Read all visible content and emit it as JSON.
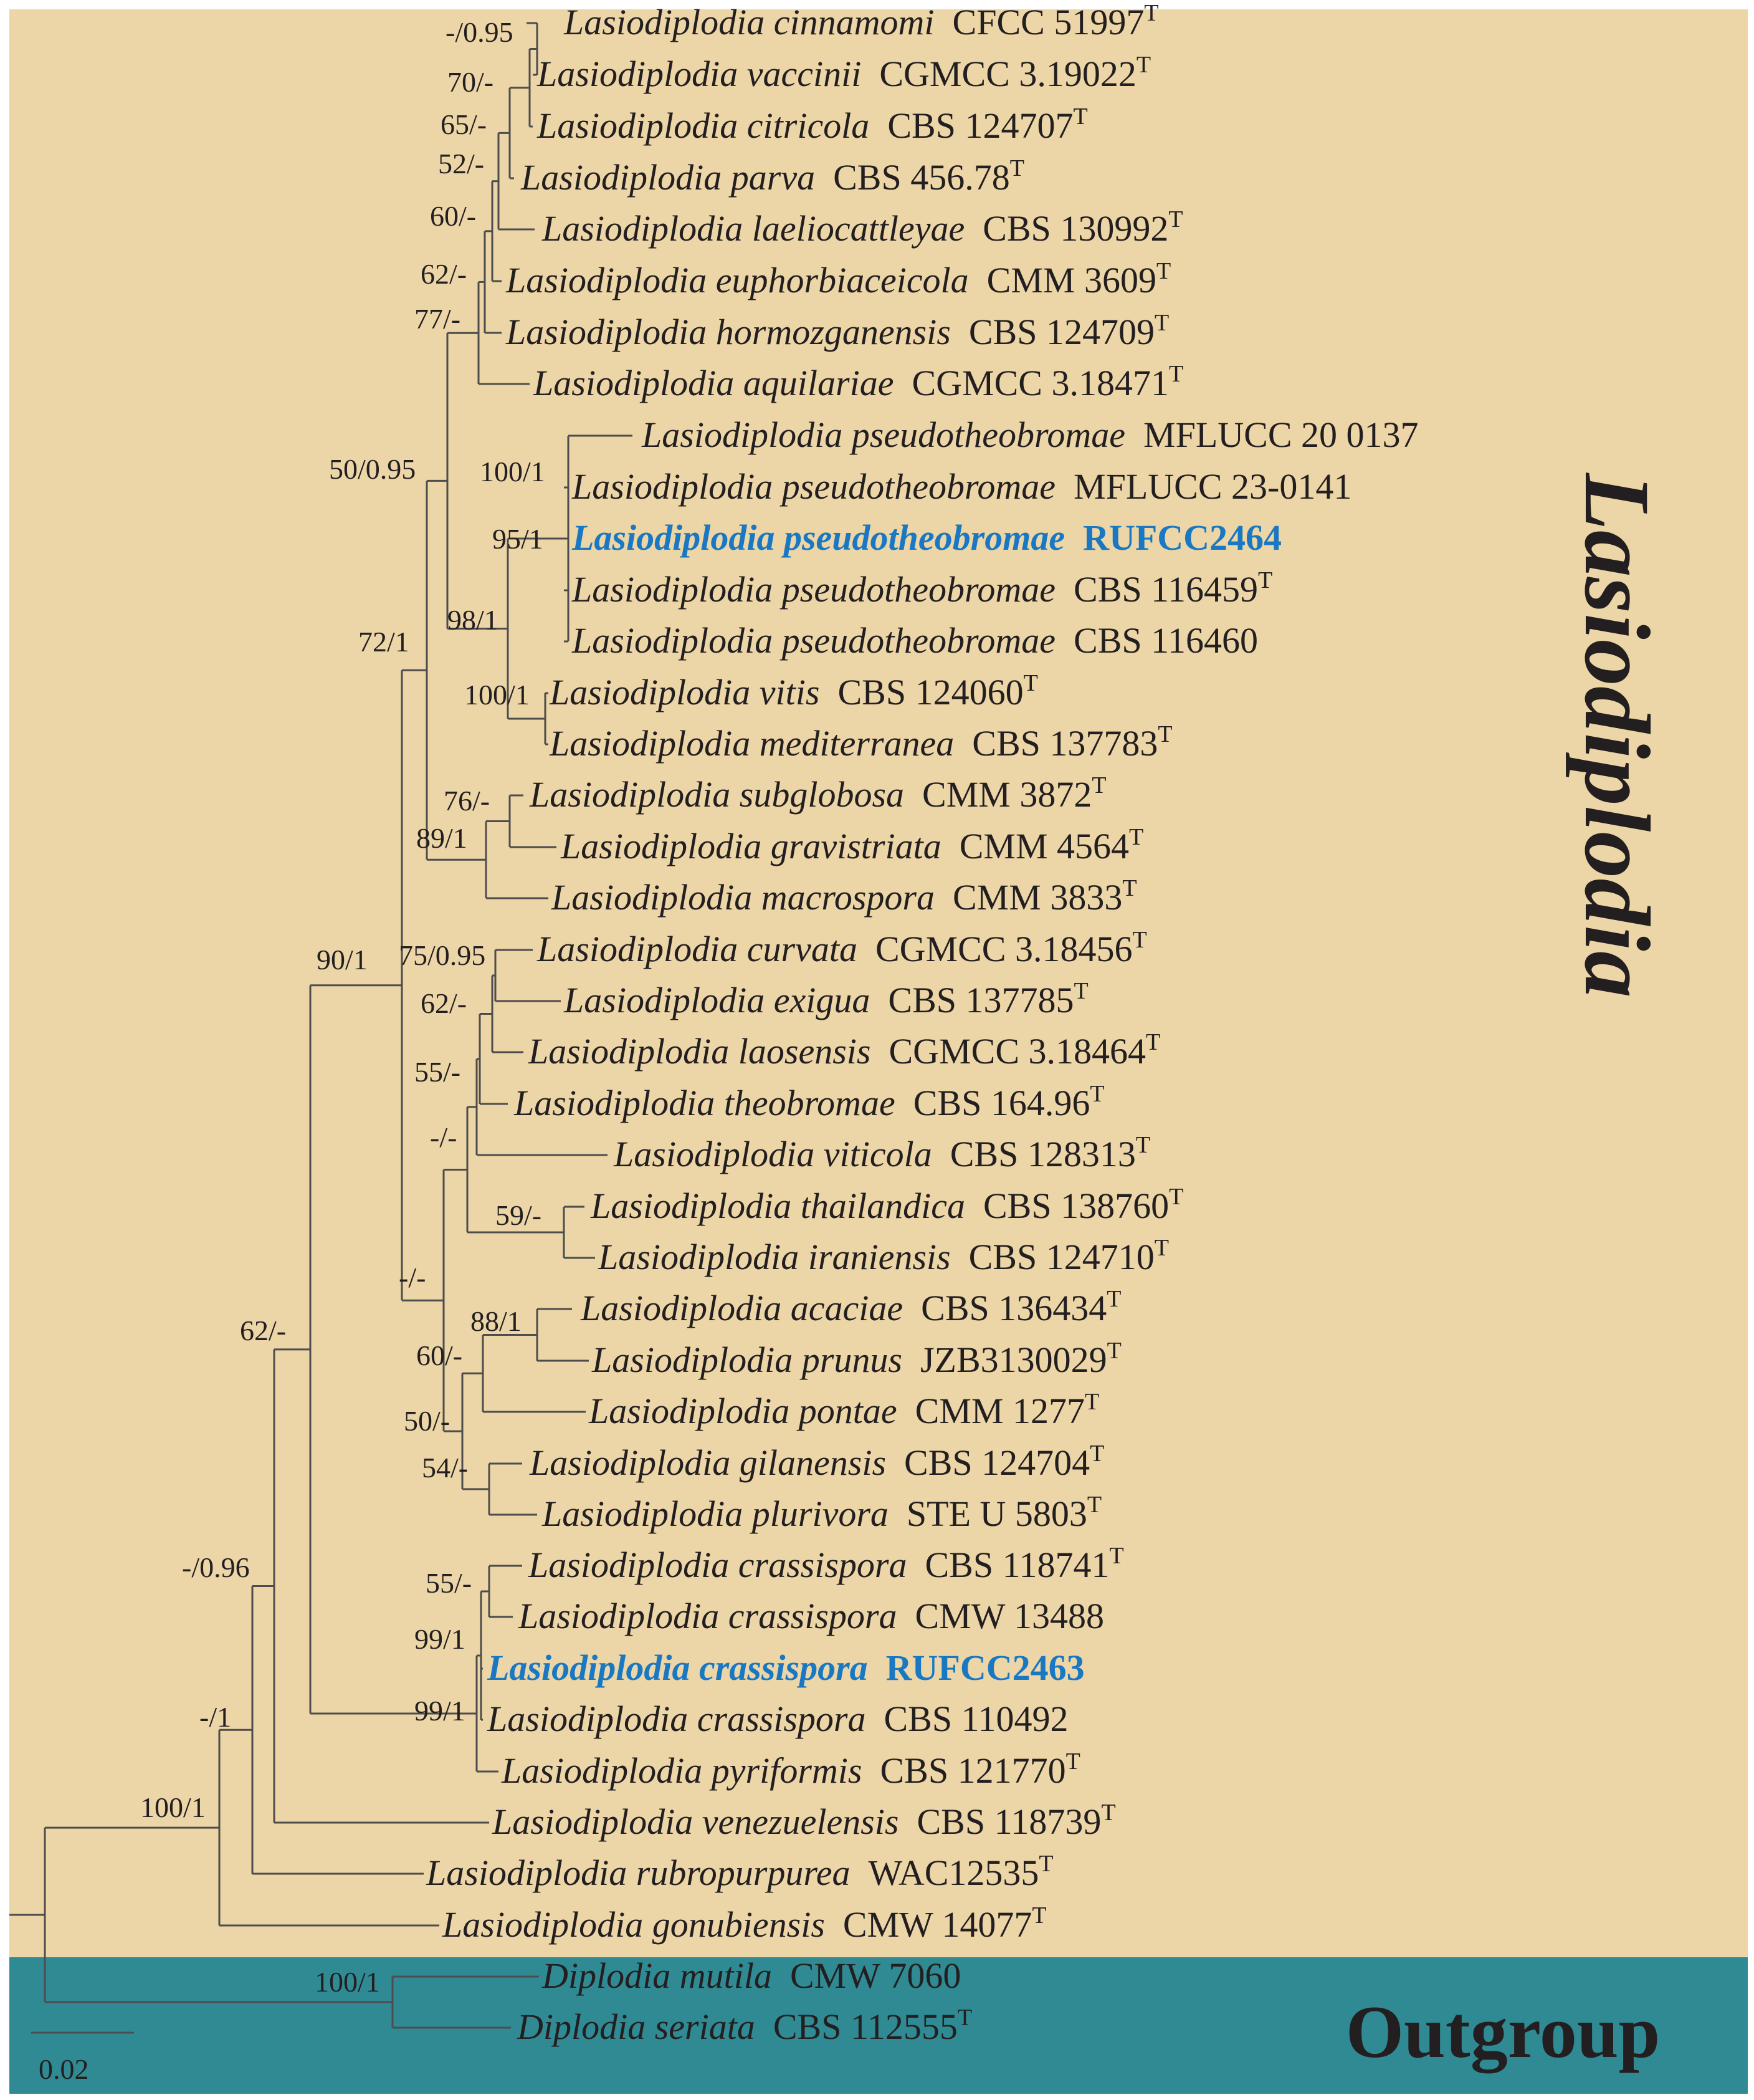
{
  "colors": {
    "ingroup_bg": "#ecd5a6",
    "outgroup_bg": "#2f8a93",
    "branch": "#4d4d4d",
    "text": "#231f20",
    "new_isolate": "#1a78c2"
  },
  "clades": {
    "ingroup": "Lasiodiplodia",
    "outgroup": "Outgroup"
  },
  "scale_bar": {
    "label": "0.02"
  },
  "taxa": [
    {
      "species": "Lasiodiplodia cinnamomi",
      "strain": "CFCC 51997",
      "type": true,
      "new": false
    },
    {
      "species": "Lasiodiplodia vaccinii",
      "strain": "CGMCC 3.19022",
      "type": true,
      "new": false
    },
    {
      "species": "Lasiodiplodia citricola",
      "strain": "CBS 124707",
      "type": true,
      "new": false
    },
    {
      "species": "Lasiodiplodia parva",
      "strain": "CBS 456.78",
      "type": true,
      "new": false
    },
    {
      "species": "Lasiodiplodia laeliocattleyae",
      "strain": "CBS 130992",
      "type": true,
      "new": false
    },
    {
      "species": "Lasiodiplodia euphorbiaceicola",
      "strain": "CMM 3609",
      "type": true,
      "new": false
    },
    {
      "species": "Lasiodiplodia hormozganensis",
      "strain": "CBS 124709",
      "type": true,
      "new": false
    },
    {
      "species": "Lasiodiplodia aquilariae",
      "strain": "CGMCC 3.18471",
      "type": true,
      "new": false
    },
    {
      "species": "Lasiodiplodia pseudotheobromae",
      "strain": "MFLUCC 20 0137",
      "type": false,
      "new": false
    },
    {
      "species": "Lasiodiplodia pseudotheobromae",
      "strain": "MFLUCC 23-0141",
      "type": false,
      "new": false
    },
    {
      "species": "Lasiodiplodia pseudotheobromae",
      "strain": "RUFCC2464",
      "type": false,
      "new": true
    },
    {
      "species": "Lasiodiplodia pseudotheobromae",
      "strain": "CBS 116459",
      "type": true,
      "new": false
    },
    {
      "species": "Lasiodiplodia pseudotheobromae",
      "strain": "CBS 116460",
      "type": false,
      "new": false
    },
    {
      "species": "Lasiodiplodia vitis",
      "strain": "CBS 124060",
      "type": true,
      "new": false
    },
    {
      "species": "Lasiodiplodia mediterranea",
      "strain": "CBS 137783",
      "type": true,
      "new": false
    },
    {
      "species": "Lasiodiplodia subglobosa",
      "strain": "CMM 3872",
      "type": true,
      "new": false
    },
    {
      "species": "Lasiodiplodia gravistriata",
      "strain": "CMM 4564",
      "type": true,
      "new": false
    },
    {
      "species": "Lasiodiplodia macrospora",
      "strain": "CMM 3833",
      "type": true,
      "new": false
    },
    {
      "species": "Lasiodiplodia curvata",
      "strain": "CGMCC 3.18456",
      "type": true,
      "new": false
    },
    {
      "species": "Lasiodiplodia exigua",
      "strain": "CBS 137785",
      "type": true,
      "new": false
    },
    {
      "species": "Lasiodiplodia laosensis",
      "strain": "CGMCC 3.18464",
      "type": true,
      "new": false
    },
    {
      "species": "Lasiodiplodia theobromae",
      "strain": "CBS 164.96",
      "type": true,
      "new": false
    },
    {
      "species": "Lasiodiplodia viticola",
      "strain": "CBS 128313",
      "type": true,
      "new": false
    },
    {
      "species": "Lasiodiplodia thailandica",
      "strain": "CBS 138760",
      "type": true,
      "new": false
    },
    {
      "species": "Lasiodiplodia iraniensis",
      "strain": "CBS 124710",
      "type": true,
      "new": false
    },
    {
      "species": "Lasiodiplodia acaciae",
      "strain": "CBS 136434",
      "type": true,
      "new": false
    },
    {
      "species": "Lasiodiplodia prunus",
      "strain": "JZB3130029",
      "type": true,
      "new": false
    },
    {
      "species": "Lasiodiplodia pontae",
      "strain": "CMM 1277",
      "type": true,
      "new": false
    },
    {
      "species": "Lasiodiplodia gilanensis",
      "strain": "CBS 124704",
      "type": true,
      "new": false
    },
    {
      "species": "Lasiodiplodia plurivora",
      "strain": "STE U 5803",
      "type": true,
      "new": false
    },
    {
      "species": "Lasiodiplodia crassispora",
      "strain": "CBS 118741",
      "type": true,
      "new": false
    },
    {
      "species": "Lasiodiplodia crassispora",
      "strain": "CMW 13488",
      "type": false,
      "new": false
    },
    {
      "species": "Lasiodiplodia crassispora",
      "strain": "RUFCC2463",
      "type": false,
      "new": true
    },
    {
      "species": "Lasiodiplodia crassispora",
      "strain": "CBS 110492",
      "type": false,
      "new": false
    },
    {
      "species": "Lasiodiplodia pyriformis",
      "strain": "CBS 121770",
      "type": true,
      "new": false
    },
    {
      "species": "Lasiodiplodia venezuelensis",
      "strain": "CBS 118739",
      "type": true,
      "new": false
    },
    {
      "species": "Lasiodiplodia rubropurpurea",
      "strain": "WAC12535",
      "type": true,
      "new": false
    },
    {
      "species": "Lasiodiplodia gonubiensis",
      "strain": "CMW 14077",
      "type": true,
      "new": false
    },
    {
      "species": "Diplodia mutila",
      "strain": "CMW 7060",
      "type": false,
      "new": false
    },
    {
      "species": "Diplodia seriata",
      "strain": "CBS 112555",
      "type": true,
      "new": false
    }
  ],
  "support_values": [
    "-/0.95",
    "70/-",
    "65/-",
    "52/-",
    "60/-",
    "62/-",
    "77/-",
    "50/0.95",
    "100/1",
    "95/1",
    "98/1",
    "100/1",
    "72/1",
    "76/-",
    "89/1",
    "90/1",
    "75/0.95",
    "62/-",
    "55/-",
    "-/-",
    "59/-",
    "-/-",
    "88/1",
    "60/-",
    "50/-",
    "54/-",
    "62/-",
    "-/0.96",
    "55/-",
    "99/1",
    "99/1",
    "-/1",
    "100/1",
    "100/1"
  ]
}
